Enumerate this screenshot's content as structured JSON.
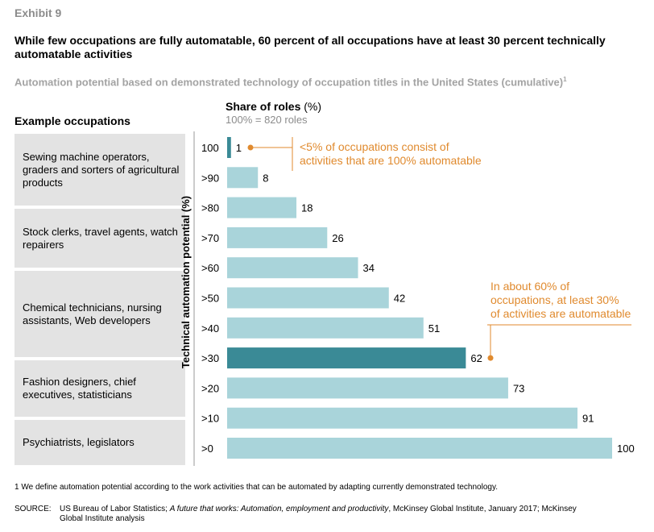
{
  "exhibit_label": "Exhibit 9",
  "title": "While few occupations are fully automatable, 60 percent of all occupations have at least 30 percent technically automatable activities",
  "subtitle": "Automation potential based on demonstrated technology of occupation titles in the United States (cumulative)",
  "subtitle_footnote_mark": "1",
  "occupations_header": "Example occupations",
  "share_header": "Share of roles",
  "share_unit": "(%)",
  "share_subheader": "100% = 820 roles",
  "occupation_groups": [
    "Sewing machine operators, graders and sorters of agricultural products",
    "Stock clerks, travel agents, watch repairers",
    "Chemical technicians, nursing assistants, Web developers",
    "Fashion designers, chief executives, statisticians",
    "Psychiatrists, legislators"
  ],
  "chart_data": {
    "type": "bar",
    "orientation": "horizontal",
    "categories": [
      "100",
      ">90",
      ">80",
      ">70",
      ">60",
      ">50",
      ">40",
      ">30",
      ">20",
      ">10",
      ">0"
    ],
    "values": [
      1,
      8,
      18,
      26,
      34,
      42,
      51,
      62,
      73,
      91,
      100
    ],
    "ylabel": "Technical automation potential (%)",
    "xlabel": "Share of roles (%)",
    "xlim": [
      0,
      100
    ],
    "highlighted_categories": [
      "100",
      ">30"
    ],
    "annotations": [
      {
        "target": "100",
        "text": [
          "<5% of occupations consist of",
          "activities that are 100% automatable"
        ]
      },
      {
        "target": ">30",
        "text": [
          "In about 60% of",
          "occupations, at least 30%",
          "of activities are automatable"
        ]
      }
    ]
  },
  "colors": {
    "bar": "#a9d4da",
    "bar_highlight": "#3a8a96",
    "annotation": "#e08a2e",
    "occupation_box": "#e3e3e3",
    "axis": "#9a9a9a"
  },
  "footnote": "1  We define automation potential according to the work activities that can be automated by adapting currently demonstrated technology.",
  "source": {
    "label": "SOURCE:",
    "part1": "US Bureau of Labor Statistics; ",
    "italic": "A future that works: Automation, employment and productivity",
    "part2": ", McKinsey Global Institute, January 2017; McKinsey",
    "line2": "Global Institute analysis"
  }
}
